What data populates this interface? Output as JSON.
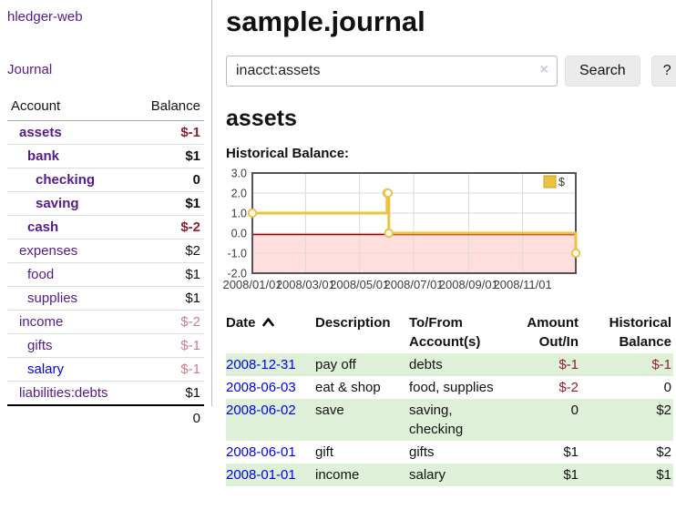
{
  "app": {
    "title": "hledger-web",
    "nav_journal": "Journal"
  },
  "colors": {
    "link_purple": "#551A8B",
    "link_blue": "#0000EE",
    "negative_strong": "#8b2030",
    "negative_light": "#c2808a",
    "row_stripe_green": "#dff0d8",
    "chart_line_gold": "#EDC240",
    "chart_negative_fill": "#ffdede",
    "chart_zero_line": "#8b0000"
  },
  "sidebar": {
    "accounts_header": {
      "account": "Account",
      "balance": "Balance"
    },
    "accounts": [
      {
        "name": "assets",
        "balance": "$-1",
        "level": 0,
        "bold": true,
        "neg": true,
        "link_blue": false
      },
      {
        "name": "bank",
        "balance": "$1",
        "level": 1,
        "bold": true,
        "neg": false,
        "link_blue": false
      },
      {
        "name": "checking",
        "balance": "0",
        "level": 2,
        "bold": true,
        "neg": false,
        "link_blue": false
      },
      {
        "name": "saving",
        "balance": "$1",
        "level": 2,
        "bold": true,
        "neg": false,
        "link_blue": false
      },
      {
        "name": "cash",
        "balance": "$-2",
        "level": 1,
        "bold": true,
        "neg": true,
        "link_blue": false
      },
      {
        "name": "expenses",
        "balance": "$2",
        "level": 0,
        "bold": false,
        "neg": false,
        "link_blue": false
      },
      {
        "name": "food",
        "balance": "$1",
        "level": 1,
        "bold": false,
        "neg": false,
        "link_blue": false
      },
      {
        "name": "supplies",
        "balance": "$1",
        "level": 1,
        "bold": false,
        "neg": false,
        "link_blue": false
      },
      {
        "name": "income",
        "balance": "$-2",
        "level": 0,
        "bold": false,
        "neg": true,
        "link_blue": false
      },
      {
        "name": "gifts",
        "balance": "$-1",
        "level": 1,
        "bold": false,
        "neg": true,
        "link_blue": false
      },
      {
        "name": "salary",
        "balance": "$-1",
        "level": 1,
        "bold": false,
        "neg": true,
        "link_blue": true
      },
      {
        "name": "liabilities:debts",
        "balance": "$1",
        "level": 0,
        "bold": false,
        "neg": false,
        "link_blue": false
      }
    ],
    "total": "0"
  },
  "header": {
    "title": "sample.journal"
  },
  "search": {
    "value": "inacct:assets",
    "clear_icon": "×",
    "button": "Search",
    "help_button": "?"
  },
  "account_page": {
    "title": "assets",
    "chart_label": "Historical Balance:"
  },
  "chart_data": {
    "type": "line",
    "step": true,
    "title": "Historical Balance",
    "series": [
      {
        "name": "$",
        "color": "#EDC240",
        "points": [
          {
            "date": "2008-01-01",
            "value": 1
          },
          {
            "date": "2008-06-01",
            "value": 2
          },
          {
            "date": "2008-06-02",
            "value": 2
          },
          {
            "date": "2008-06-03",
            "value": 0
          },
          {
            "date": "2008-12-31",
            "value": -1
          }
        ]
      }
    ],
    "x_domain": [
      "2008-01-01",
      "2008-12-31"
    ],
    "x_ticks": [
      "2008/01/01",
      "2008/03/01",
      "2008/05/01",
      "2008/07/01",
      "2008/09/01",
      "2008/11/01"
    ],
    "y_ticks": [
      "3.0",
      "2.0",
      "1.0",
      "0.0",
      "-1.0",
      "-2.0"
    ],
    "ylim": [
      -2,
      3
    ],
    "grid": true,
    "negative_region_color": "#ffdede",
    "zero_line_color": "#8b0000",
    "legend": {
      "label": "$",
      "position": "top-right"
    }
  },
  "register": {
    "columns": [
      {
        "label": "Date",
        "sort": "asc",
        "align": "left"
      },
      {
        "label": "Description",
        "align": "left"
      },
      {
        "label": "To/From Account(s)",
        "align": "left"
      },
      {
        "label": "Amount Out/In",
        "align": "right"
      },
      {
        "label": "Historical Balance",
        "align": "right"
      }
    ],
    "rows": [
      {
        "date": "2008-12-31",
        "description": "pay off",
        "accounts": "debts",
        "amount": "$-1",
        "amount_neg": true,
        "balance": "$-1",
        "balance_neg": true,
        "stripe": true
      },
      {
        "date": "2008-06-03",
        "description": "eat & shop",
        "accounts": "food, supplies",
        "amount": "$-2",
        "amount_neg": true,
        "balance": "0",
        "balance_neg": false,
        "stripe": false
      },
      {
        "date": "2008-06-02",
        "description": "save",
        "accounts": "saving, checking",
        "amount": "0",
        "amount_neg": false,
        "balance": "$2",
        "balance_neg": false,
        "stripe": true
      },
      {
        "date": "2008-06-01",
        "description": "gift",
        "accounts": "gifts",
        "amount": "$1",
        "amount_neg": false,
        "balance": "$2",
        "balance_neg": false,
        "stripe": false
      },
      {
        "date": "2008-01-01",
        "description": "income",
        "accounts": "salary",
        "amount": "$1",
        "amount_neg": false,
        "balance": "$1",
        "balance_neg": false,
        "stripe": true
      }
    ]
  }
}
